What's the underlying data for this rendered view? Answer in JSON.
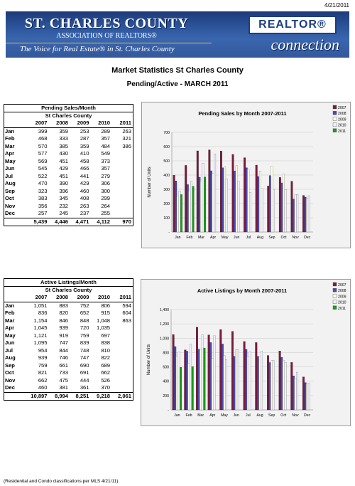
{
  "date": "4/21/2011",
  "header": {
    "org_name": "ST. CHARLES COUNTY",
    "assoc": "ASSOCIATION OF REALTORS®",
    "tagline": "The Voice for Real Estate® in St. Charles County",
    "realtor": "REALTOR®",
    "connection": "connection"
  },
  "title": "Market Statistics St Charles County",
  "subtitle": "Pending/Active - MARCH 2011",
  "pending": {
    "title": "Pending Sales/Month",
    "subtitle": "St Charles County",
    "years": [
      "2007",
      "2008",
      "2009",
      "2010",
      "2011"
    ],
    "rows": [
      {
        "m": "Jan",
        "v": [
          "399",
          "359",
          "253",
          "289",
          "263"
        ]
      },
      {
        "m": "Feb",
        "v": [
          "468",
          "333",
          "287",
          "357",
          "321"
        ]
      },
      {
        "m": "Mar",
        "v": [
          "570",
          "385",
          "359",
          "484",
          "386"
        ]
      },
      {
        "m": "Apr",
        "v": [
          "577",
          "430",
          "410",
          "549",
          ""
        ]
      },
      {
        "m": "May",
        "v": [
          "569",
          "451",
          "458",
          "373",
          ""
        ]
      },
      {
        "m": "Jun",
        "v": [
          "545",
          "429",
          "466",
          "357",
          ""
        ]
      },
      {
        "m": "Jul",
        "v": [
          "522",
          "451",
          "441",
          "279",
          ""
        ]
      },
      {
        "m": "Aug",
        "v": [
          "470",
          "390",
          "429",
          "306",
          ""
        ]
      },
      {
        "m": "Sep",
        "v": [
          "323",
          "396",
          "460",
          "300",
          ""
        ]
      },
      {
        "m": "Oct",
        "v": [
          "383",
          "345",
          "408",
          "299",
          ""
        ]
      },
      {
        "m": "Nov",
        "v": [
          "356",
          "232",
          "263",
          "264",
          ""
        ]
      },
      {
        "m": "Dec",
        "v": [
          "257",
          "245",
          "237",
          "255",
          ""
        ]
      }
    ],
    "totals": [
      "5,439",
      "4,446",
      "4,471",
      "4,112",
      "970"
    ]
  },
  "active": {
    "title": "Active Listings/Month",
    "subtitle": "St Charles County",
    "years": [
      "2007",
      "2008",
      "2009",
      "2010",
      "2011"
    ],
    "rows": [
      {
        "m": "Jan",
        "v": [
          "1,051",
          "883",
          "752",
          "806",
          "594"
        ]
      },
      {
        "m": "Feb",
        "v": [
          "836",
          "820",
          "652",
          "915",
          "604"
        ]
      },
      {
        "m": "Mar",
        "v": [
          "1,154",
          "846",
          "848",
          "1,048",
          "863"
        ]
      },
      {
        "m": "Apr",
        "v": [
          "1,045",
          "939",
          "720",
          "1,035",
          ""
        ]
      },
      {
        "m": "May",
        "v": [
          "1,121",
          "919",
          "759",
          "697",
          ""
        ]
      },
      {
        "m": "Jun",
        "v": [
          "1,095",
          "747",
          "839",
          "838",
          ""
        ]
      },
      {
        "m": "Jul",
        "v": [
          "954",
          "844",
          "748",
          "810",
          ""
        ]
      },
      {
        "m": "Aug",
        "v": [
          "939",
          "746",
          "747",
          "822",
          ""
        ]
      },
      {
        "m": "Sep",
        "v": [
          "759",
          "661",
          "690",
          "689",
          ""
        ]
      },
      {
        "m": "Oct",
        "v": [
          "821",
          "733",
          "691",
          "662",
          ""
        ]
      },
      {
        "m": "Nov",
        "v": [
          "662",
          "475",
          "444",
          "526",
          ""
        ]
      },
      {
        "m": "Dec",
        "v": [
          "460",
          "381",
          "361",
          "370",
          ""
        ]
      }
    ],
    "totals": [
      "10,897",
      "8,994",
      "8,251",
      "9,218",
      "2,061"
    ]
  },
  "footnote": "(Residential and Condo classifications per MLS 4/21/11)",
  "colors": {
    "2007": "#7b1b3b",
    "2008": "#4a4ab0",
    "2009": "#ffffe0",
    "2010": "#f0f0ff",
    "2011": "#1a9a1a"
  },
  "chart_data": [
    {
      "type": "bar",
      "title": "Pending Sales by Month 2007-2011",
      "ylabel": "Number of Units",
      "ylim": [
        0,
        700
      ],
      "yticks": [
        "-",
        "100",
        "200",
        "300",
        "400",
        "500",
        "600",
        "700"
      ],
      "categories": [
        "Jan",
        "Feb",
        "Mar",
        "Apr",
        "May",
        "Jun",
        "Jul",
        "Aug",
        "Sep",
        "Oct",
        "Nov",
        "Dec"
      ],
      "series": [
        {
          "name": "2007",
          "values": [
            399,
            468,
            570,
            577,
            569,
            545,
            522,
            470,
            323,
            383,
            356,
            257
          ]
        },
        {
          "name": "2008",
          "values": [
            359,
            333,
            385,
            430,
            451,
            429,
            451,
            390,
            396,
            345,
            232,
            245
          ]
        },
        {
          "name": "2009",
          "values": [
            253,
            287,
            359,
            410,
            458,
            466,
            441,
            429,
            460,
            408,
            263,
            237
          ]
        },
        {
          "name": "2010",
          "values": [
            289,
            357,
            484,
            549,
            373,
            357,
            279,
            306,
            300,
            299,
            264,
            255
          ]
        },
        {
          "name": "2011",
          "values": [
            263,
            321,
            386,
            null,
            null,
            null,
            null,
            null,
            null,
            null,
            null,
            null
          ]
        }
      ]
    },
    {
      "type": "bar",
      "title": "Active Listings by Month 2007-2011",
      "ylabel": "Number of Units",
      "ylim": [
        0,
        1400
      ],
      "yticks": [
        "-",
        "200",
        "400",
        "600",
        "800",
        "1,000",
        "1,200",
        "1,400"
      ],
      "categories": [
        "Jan",
        "Feb",
        "Mar",
        "Apr",
        "May",
        "Jun",
        "Jul",
        "Aug",
        "Sep",
        "Oct",
        "Nov",
        "Dec"
      ],
      "series": [
        {
          "name": "2007",
          "values": [
            1051,
            836,
            1154,
            1045,
            1121,
            1095,
            954,
            939,
            759,
            821,
            662,
            460
          ]
        },
        {
          "name": "2008",
          "values": [
            883,
            820,
            846,
            939,
            919,
            747,
            844,
            746,
            661,
            733,
            475,
            381
          ]
        },
        {
          "name": "2009",
          "values": [
            752,
            652,
            848,
            720,
            759,
            839,
            748,
            747,
            690,
            691,
            444,
            361
          ]
        },
        {
          "name": "2010",
          "values": [
            806,
            915,
            1048,
            1035,
            697,
            838,
            810,
            822,
            689,
            662,
            526,
            370
          ]
        },
        {
          "name": "2011",
          "values": [
            594,
            604,
            863,
            null,
            null,
            null,
            null,
            null,
            null,
            null,
            null,
            null
          ]
        }
      ]
    }
  ]
}
